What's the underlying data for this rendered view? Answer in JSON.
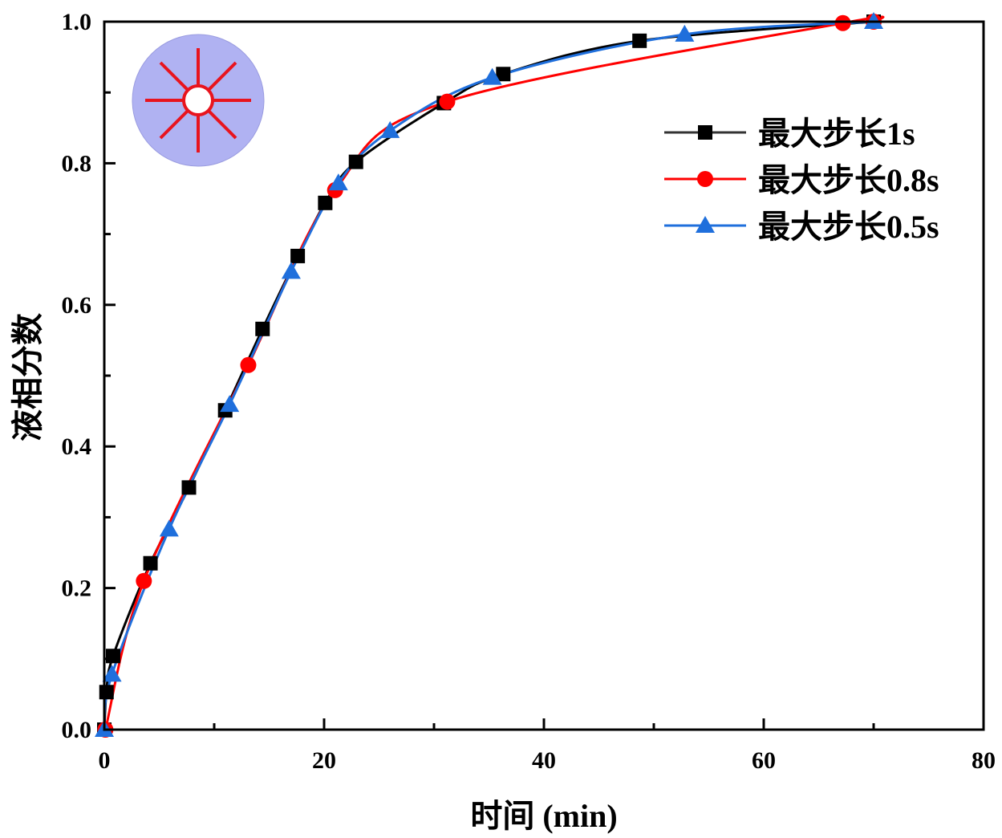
{
  "chart_data": {
    "type": "line",
    "title": "",
    "xlabel": "时间 (min)",
    "ylabel": "液相分数",
    "xlim": [
      0,
      80
    ],
    "ylim": [
      0,
      1.0
    ],
    "xticks": [
      "0",
      "20",
      "40",
      "60",
      "80"
    ],
    "yticks": [
      "0.0",
      "0.2",
      "0.4",
      "0.6",
      "0.8",
      "1.0"
    ],
    "xtick_values": [
      0,
      20,
      40,
      60,
      80
    ],
    "ytick_values": [
      0,
      0.2,
      0.4,
      0.6,
      0.8,
      1.0
    ],
    "grid": false,
    "legend_position": "top-right",
    "series": [
      {
        "name": "最大步长1s",
        "color": "#000000",
        "marker": "square",
        "x": [
          0,
          0.2,
          0.8,
          4.2,
          7.7,
          11.0,
          14.4,
          17.6,
          20.1,
          22.9,
          30.9,
          36.3,
          48.7,
          70.0
        ],
        "y": [
          0,
          0.053,
          0.104,
          0.235,
          0.342,
          0.451,
          0.566,
          0.669,
          0.744,
          0.802,
          0.885,
          0.926,
          0.973,
          1.0
        ]
      },
      {
        "name": "最大步长0.8s",
        "color": "#ff0000",
        "marker": "circle",
        "x": [
          0.1,
          3.6,
          13.1,
          21.0,
          31.2,
          67.2,
          70.0
        ],
        "y": [
          0,
          0.21,
          0.515,
          0.762,
          0.887,
          0.998,
          1.0
        ]
      },
      {
        "name": "最大步长0.5s",
        "color": "#1f6fdc",
        "marker": "triangle",
        "x": [
          0,
          0.7,
          5.9,
          11.4,
          17.0,
          21.3,
          26.0,
          35.3,
          52.8,
          70.0
        ],
        "y": [
          0,
          0.078,
          0.283,
          0.459,
          0.647,
          0.772,
          0.846,
          0.921,
          0.982,
          1.0
        ]
      }
    ]
  },
  "inset_icon": "radial-spoke-circle-icon"
}
